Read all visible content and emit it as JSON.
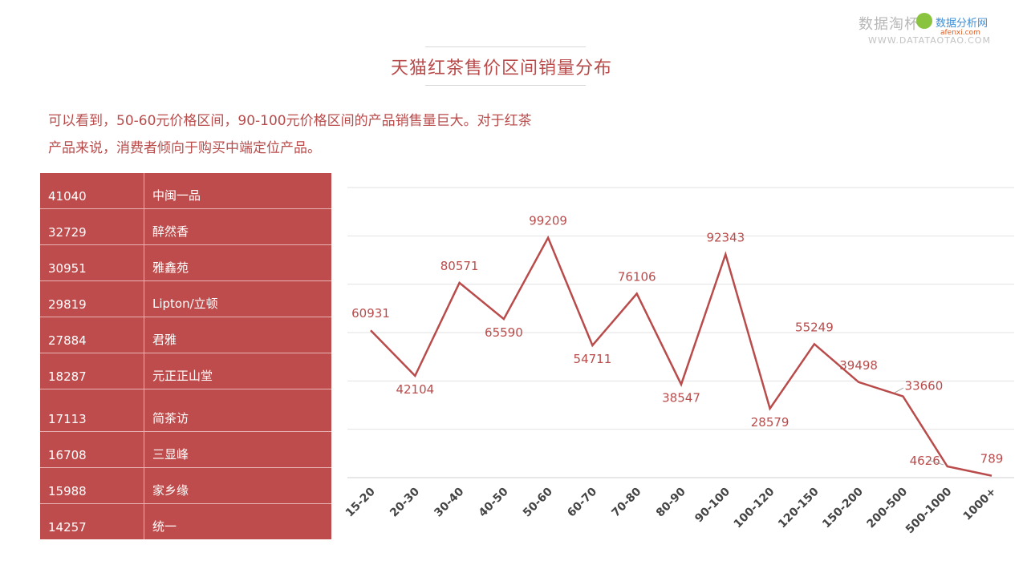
{
  "watermark": {
    "cn": "数据淘杯",
    "en": "WWW.DATATAOTAO.COM",
    "brand": "数据分析网",
    "brand_url": "afenxi.com"
  },
  "title": "天猫红茶售价区间销量分布",
  "description": [
    "可以看到，50-60元价格区间，90-100元价格区间的产品销售量巨大。对于红茶",
    "产品来说，消费者倾向于购买中端定位产品。"
  ],
  "brand_table": [
    {
      "sales": "41040",
      "name": "中闽一品"
    },
    {
      "sales": "32729",
      "name": "醉然香"
    },
    {
      "sales": "30951",
      "name": "雅鑫苑"
    },
    {
      "sales": "29819",
      "name": "Lipton/立顿"
    },
    {
      "sales": "27884",
      "name": "君雅"
    },
    {
      "sales": "18287",
      "name": "元正正山堂"
    },
    {
      "sales": "17113",
      "name": "简茶访"
    },
    {
      "sales": "16708",
      "name": "三显峰"
    },
    {
      "sales": "15988",
      "name": "家乡缘"
    },
    {
      "sales": "14257",
      "name": "统一"
    }
  ],
  "colors": {
    "accent": "#b94b4b",
    "table_bg": "#bf4c4c"
  },
  "chart_data": {
    "type": "line",
    "title": "",
    "xlabel": "",
    "ylabel": "",
    "categories": [
      "15-20",
      "20-30",
      "30-40",
      "40-50",
      "50-60",
      "60-70",
      "70-80",
      "80-90",
      "90-100",
      "100-120",
      "120-150",
      "150-200",
      "200-500",
      "500-1000",
      "1000+"
    ],
    "series": [
      {
        "values": [
          60931,
          42104,
          80571,
          65590,
          99209,
          54711,
          76106,
          38547,
          92343,
          28579,
          55249,
          39498,
          33660,
          4626,
          789
        ]
      }
    ],
    "ylim": [
      0,
      120000
    ],
    "grid": true,
    "legend": "none",
    "data_labels": true
  }
}
